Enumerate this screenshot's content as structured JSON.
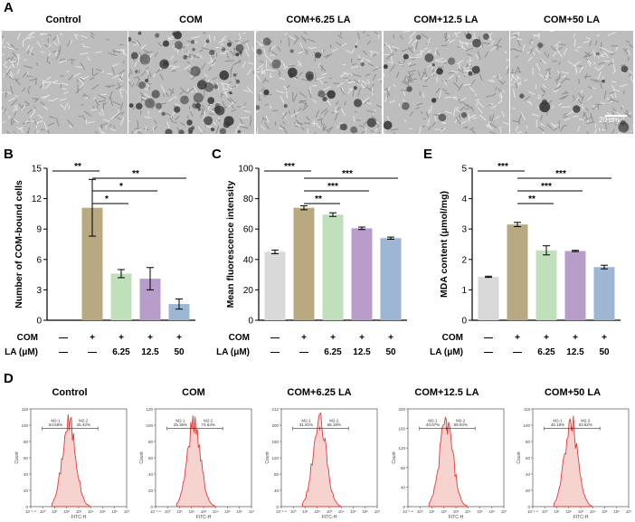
{
  "panels": {
    "A": {
      "letter": "A",
      "titles": [
        "Control",
        "COM",
        "COM+6.25 LA",
        "COM+12.5 LA",
        "COM+50 LA"
      ],
      "scale_bar": "20 μm"
    },
    "B": {
      "letter": "B"
    },
    "C": {
      "letter": "C"
    },
    "E": {
      "letter": "E"
    },
    "D": {
      "letter": "D",
      "titles": [
        "Control",
        "COM",
        "COM+6.25 LA",
        "COM+12.5 LA",
        "COM+50 LA"
      ]
    }
  },
  "treatment_rows": {
    "com_label": "COM",
    "la_label": "LA (μM)",
    "com_marks": [
      "—",
      "+",
      "+",
      "+",
      "+"
    ],
    "com_marks_b": [
      "—",
      "+",
      "+",
      "+",
      "+"
    ],
    "la_marks": [
      "—",
      "—",
      "6.25",
      "12.5",
      "50"
    ]
  },
  "colors": {
    "control": "#d9d9d9",
    "com": "#b8a981",
    "la625": "#bfe0bb",
    "la125": "#b89cc9",
    "la50": "#9db6d3",
    "flow_line": "#e23b3b",
    "flow_fill": "#f7d3d0"
  },
  "chart_data": [
    {
      "panel": "B",
      "type": "bar",
      "ylabel": "Number of COM-bound cells",
      "ylim": [
        0,
        15
      ],
      "yticks": [
        "0",
        "3",
        "6",
        "9",
        "12",
        "15"
      ],
      "values": [
        0,
        11.1,
        4.6,
        4.1,
        1.6
      ],
      "errors": [
        0,
        2.8,
        0.4,
        1.1,
        0.5
      ],
      "significance": [
        {
          "from": 0,
          "to": 1,
          "label": "**"
        },
        {
          "from": 1,
          "to": 4,
          "label": "**"
        },
        {
          "from": 1,
          "to": 3,
          "label": "*"
        },
        {
          "from": 1,
          "to": 2,
          "label": "*"
        }
      ]
    },
    {
      "panel": "C",
      "type": "bar",
      "ylabel": "Mean fluorescence intensity",
      "ylim": [
        0,
        100
      ],
      "yticks": [
        "0",
        "20",
        "40",
        "60",
        "80",
        "100"
      ],
      "values": [
        45,
        74,
        69.5,
        60.5,
        54
      ],
      "errors": [
        1.2,
        1.3,
        1.2,
        0.8,
        0.7
      ],
      "significance": [
        {
          "from": 0,
          "to": 1,
          "label": "***"
        },
        {
          "from": 1,
          "to": 4,
          "label": "***"
        },
        {
          "from": 1,
          "to": 3,
          "label": "***"
        },
        {
          "from": 1,
          "to": 2,
          "label": "**"
        }
      ]
    },
    {
      "panel": "E",
      "type": "bar",
      "ylabel": "MDA content (μmol/mg)",
      "ylim": [
        0,
        5
      ],
      "yticks": [
        "0",
        "1",
        "2",
        "3",
        "4",
        "5"
      ],
      "values": [
        1.43,
        3.15,
        2.3,
        2.28,
        1.75
      ],
      "errors": [
        0.02,
        0.07,
        0.15,
        0.02,
        0.06
      ],
      "significance": [
        {
          "from": 0,
          "to": 1,
          "label": "***"
        },
        {
          "from": 1,
          "to": 4,
          "label": "***"
        },
        {
          "from": 1,
          "to": 3,
          "label": "***"
        },
        {
          "from": 1,
          "to": 2,
          "label": "**"
        }
      ]
    }
  ],
  "flow": {
    "xlabel": "FITC-H",
    "ylabel": "Count",
    "gates": [
      "M2-1",
      "M2-2"
    ],
    "xticks": [
      "10⁻¹·⁸",
      "10⁰",
      "10¹",
      "10²",
      "10³",
      "10⁴",
      "10⁵",
      "10⁶",
      "10⁷"
    ],
    "plots": [
      {
        "title": "Control",
        "pct1": "54.58%",
        "pct2": "45.42%",
        "yticks": [
          "0",
          "20",
          "40",
          "60",
          "80",
          "100",
          "118"
        ]
      },
      {
        "title": "COM",
        "pct1": "25.36%",
        "pct2": "74.64%",
        "yticks": [
          "0",
          "20",
          "40",
          "60",
          "80",
          "100",
          "120"
        ]
      },
      {
        "title": "COM+6.25 LA",
        "pct1": "31.81%",
        "pct2": "68.19%",
        "yticks": [
          "0",
          "40",
          "80",
          "120",
          "160",
          "200",
          "212"
        ]
      },
      {
        "title": "COM+12.5 LA",
        "pct1": "40.07%",
        "pct2": "59.93%",
        "yticks": [
          "0",
          "40",
          "80",
          "120",
          "160",
          "200"
        ]
      },
      {
        "title": "COM+50 LA",
        "pct1": "46.18%",
        "pct2": "53.82%",
        "yticks": [
          "0",
          "20",
          "40",
          "60",
          "80",
          "100",
          "118"
        ]
      }
    ]
  }
}
